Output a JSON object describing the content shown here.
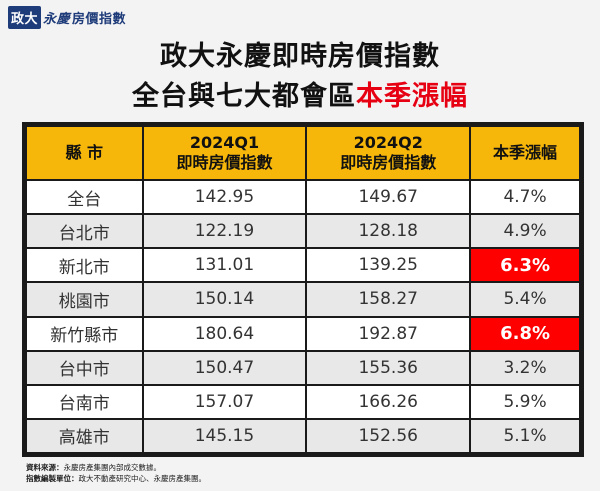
{
  "logo": {
    "part1": "政大",
    "part2": "永慶",
    "part3": "房價指數"
  },
  "title": {
    "line1": "政大永慶即時房價指數",
    "line2_prefix": "全台與七大都會區",
    "line2_highlight": "本季漲幅"
  },
  "colors": {
    "header": "#f6b70a",
    "highlight": "#ff0000",
    "title_accent": "#e60012"
  },
  "table": {
    "headers": [
      {
        "line1": "縣 市",
        "line2": ""
      },
      {
        "line1": "2024Q1",
        "line2": "即時房價指數"
      },
      {
        "line1": "2024Q2",
        "line2": "即時房價指數"
      },
      {
        "line1": "本季漲幅",
        "line2": ""
      }
    ],
    "rows": [
      {
        "city": "全台",
        "q1": "142.95",
        "q2": "149.67",
        "change": "4.7%",
        "highlight": false
      },
      {
        "city": "台北市",
        "q1": "122.19",
        "q2": "128.18",
        "change": "4.9%",
        "highlight": false
      },
      {
        "city": "新北市",
        "q1": "131.01",
        "q2": "139.25",
        "change": "6.3%",
        "highlight": true
      },
      {
        "city": "桃園市",
        "q1": "150.14",
        "q2": "158.27",
        "change": "5.4%",
        "highlight": false
      },
      {
        "city": "新竹縣市",
        "q1": "180.64",
        "q2": "192.87",
        "change": "6.8%",
        "highlight": true
      },
      {
        "city": "台中市",
        "q1": "150.47",
        "q2": "155.36",
        "change": "3.2%",
        "highlight": false
      },
      {
        "city": "台南市",
        "q1": "157.07",
        "q2": "166.26",
        "change": "5.9%",
        "highlight": false
      },
      {
        "city": "高雄市",
        "q1": "145.15",
        "q2": "152.56",
        "change": "5.1%",
        "highlight": false
      }
    ]
  },
  "footer": {
    "source_label": "資料來源：",
    "source_text": "永慶房產集團內部成交數據。",
    "maker_label": "指數編製單位：",
    "maker_text": "政大不動產研究中心、永慶房產集團。"
  }
}
